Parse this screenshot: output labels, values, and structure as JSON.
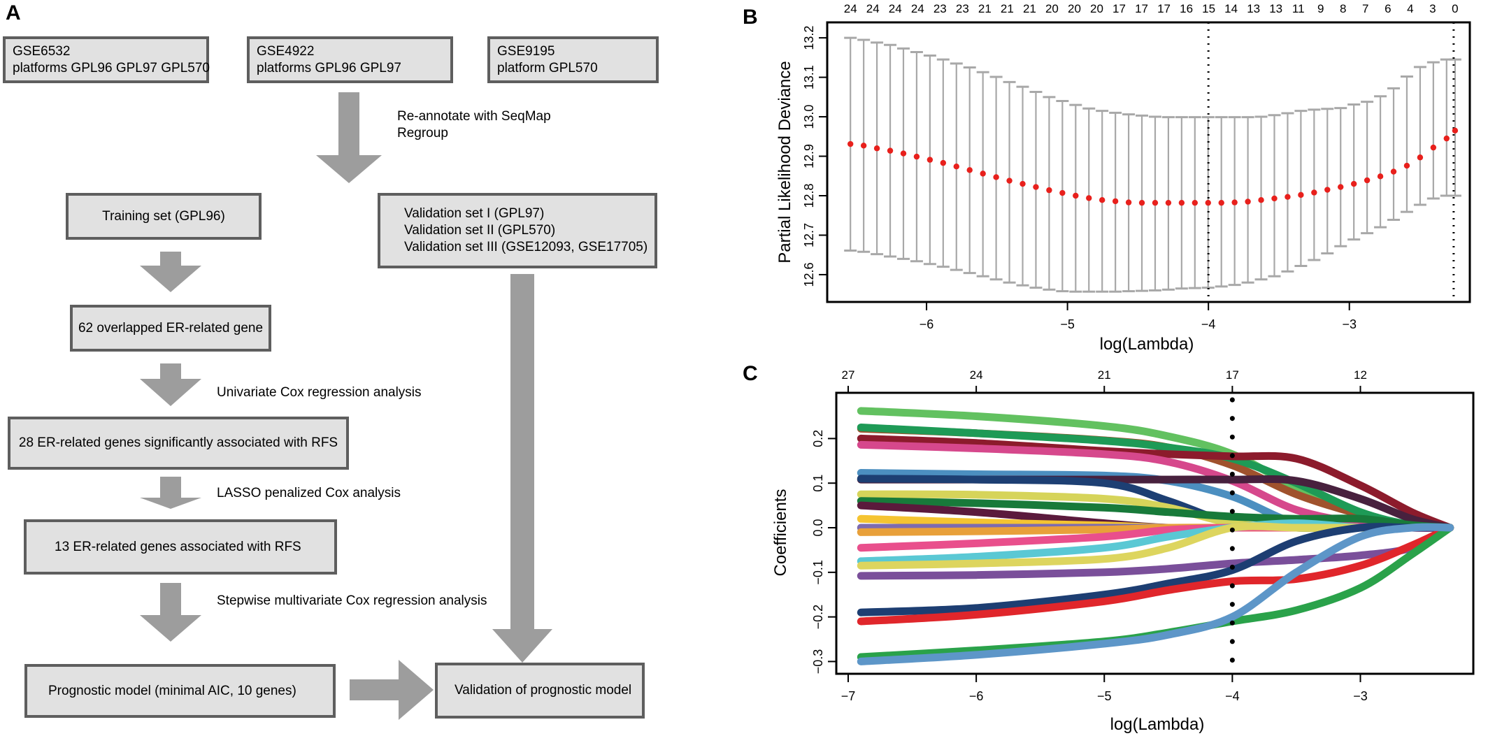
{
  "panels": {
    "a": "A",
    "b": "B",
    "c": "C"
  },
  "flowchart": {
    "boxes": [
      {
        "id": "gse6532",
        "lines": [
          "GSE6532",
          "platforms GPL96 GPL97 GPL570"
        ]
      },
      {
        "id": "gse4922",
        "lines": [
          "GSE4922",
          "platforms GPL96 GPL97"
        ]
      },
      {
        "id": "gse9195",
        "lines": [
          "GSE9195",
          "platform GPL570"
        ]
      },
      {
        "id": "training",
        "lines": [
          "Training set (GPL96)"
        ]
      },
      {
        "id": "validation-sets",
        "lines": [
          "Validation set I (GPL97)",
          "Validation set II (GPL570)",
          "Validation set III (GSE12093, GSE17705)"
        ]
      },
      {
        "id": "overlap",
        "lines": [
          "62 overlapped ER-related gene"
        ]
      },
      {
        "id": "sig28",
        "lines": [
          "28 ER-related genes significantly associated with RFS"
        ]
      },
      {
        "id": "sig13",
        "lines": [
          "13 ER-related genes associated with RFS"
        ]
      },
      {
        "id": "model",
        "lines": [
          "Prognostic model (minimal AIC, 10 genes)"
        ]
      },
      {
        "id": "validation",
        "lines": [
          "Validation of prognostic model"
        ]
      }
    ],
    "labels": [
      {
        "id": "reannotate",
        "lines": [
          "Re-annotate with SeqMap",
          "Regroup"
        ]
      },
      {
        "id": "univariate",
        "lines": [
          "Univariate Cox regression analysis"
        ]
      },
      {
        "id": "lasso",
        "lines": [
          "LASSO penalized Cox analysis"
        ]
      },
      {
        "id": "stepwise",
        "lines": [
          "Stepwise multivariate Cox regression analysis"
        ]
      }
    ],
    "colors": {
      "box_fill": "#e1e1e1",
      "box_border": "#5e5e5e",
      "arrow": "#9d9d9d"
    }
  },
  "chart_data": [
    {
      "type": "scatter",
      "id": "cv-deviance",
      "xlabel": "log(Lambda)",
      "ylabel": "Partial Likelihood Deviance",
      "xlim": [
        -6.67,
        -2.18
      ],
      "ylim": [
        12.545,
        13.225
      ],
      "xticks": [
        -6,
        -5,
        -4,
        -3
      ],
      "yticks": [
        12.6,
        12.7,
        12.8,
        12.9,
        13.0,
        13.1,
        13.2
      ],
      "top_ticks": [
        "24",
        "24",
        "24",
        "24",
        "23",
        "23",
        "21",
        "21",
        "21",
        "20",
        "20",
        "20",
        "17",
        "17",
        "17",
        "16",
        "15",
        "14",
        "13",
        "13",
        "11",
        "9",
        "8",
        "7",
        "6",
        "4",
        "3",
        "0"
      ],
      "vlines": [
        -4.0,
        -2.26
      ],
      "x": [
        -6.54,
        -6.446,
        -6.352,
        -6.258,
        -6.164,
        -6.07,
        -5.976,
        -5.882,
        -5.788,
        -5.694,
        -5.6,
        -5.506,
        -5.412,
        -5.318,
        -5.224,
        -5.13,
        -5.036,
        -4.942,
        -4.848,
        -4.754,
        -4.66,
        -4.566,
        -4.472,
        -4.378,
        -4.284,
        -4.19,
        -4.096,
        -4.002,
        -3.908,
        -3.814,
        -3.72,
        -3.626,
        -3.532,
        -3.438,
        -3.344,
        -3.25,
        -3.156,
        -3.062,
        -2.968,
        -2.874,
        -2.78,
        -2.686,
        -2.592,
        -2.498,
        -2.404,
        -2.31,
        -2.25
      ],
      "y": [
        12.931,
        12.927,
        12.92,
        12.914,
        12.907,
        12.899,
        12.891,
        12.883,
        12.874,
        12.865,
        12.856,
        12.847,
        12.838,
        12.83,
        12.822,
        12.814,
        12.807,
        12.8,
        12.794,
        12.789,
        12.786,
        12.783,
        12.782,
        12.782,
        12.782,
        12.782,
        12.782,
        12.782,
        12.782,
        12.783,
        12.785,
        12.789,
        12.793,
        12.797,
        12.802,
        12.808,
        12.815,
        12.822,
        12.83,
        12.839,
        12.849,
        12.861,
        12.876,
        12.897,
        12.922,
        12.945,
        12.965
      ],
      "upper": [
        13.2,
        13.195,
        13.188,
        13.182,
        13.173,
        13.164,
        13.155,
        13.145,
        13.135,
        13.125,
        13.113,
        13.101,
        13.088,
        13.076,
        13.063,
        13.05,
        13.04,
        13.03,
        13.021,
        13.015,
        13.01,
        13.006,
        13.003,
        13.0,
        12.999,
        12.999,
        12.999,
        12.999,
        12.999,
        12.999,
        12.999,
        13.0,
        13.004,
        13.009,
        13.015,
        13.018,
        13.02,
        13.022,
        13.031,
        13.038,
        13.052,
        13.072,
        13.102,
        13.126,
        13.138,
        13.145,
        13.145
      ],
      "lower": [
        12.661,
        12.658,
        12.652,
        12.646,
        12.64,
        12.634,
        12.627,
        12.62,
        12.612,
        12.604,
        12.596,
        12.588,
        12.58,
        12.573,
        12.567,
        12.562,
        12.558,
        12.557,
        12.557,
        12.557,
        12.557,
        12.558,
        12.559,
        12.56,
        12.562,
        12.565,
        12.566,
        12.567,
        12.57,
        12.574,
        12.58,
        12.588,
        12.596,
        12.608,
        12.622,
        12.637,
        12.654,
        12.672,
        12.689,
        12.705,
        12.72,
        12.739,
        12.759,
        12.777,
        12.793,
        12.8,
        12.8
      ],
      "colors": {
        "points": "#e8201c",
        "bars": "#a8a8a8",
        "vline": "#000000"
      }
    },
    {
      "type": "line",
      "id": "coefficient-paths",
      "xlabel": "log(Lambda)",
      "ylabel": "Coefficients",
      "xlim": [
        -7.0,
        -2.2
      ],
      "ylim": [
        -0.315,
        0.29
      ],
      "xticks": [
        -7,
        -6,
        -5,
        -4,
        -3
      ],
      "yticks": [
        -0.3,
        -0.2,
        -0.1,
        0.0,
        0.1,
        0.2
      ],
      "top_ticks": [
        {
          "x": -7.0,
          "label": "27"
        },
        {
          "x": -6.0,
          "label": "24"
        },
        {
          "x": -5.0,
          "label": "21"
        },
        {
          "x": -4.0,
          "label": "17"
        },
        {
          "x": -3.0,
          "label": "12"
        }
      ],
      "vlines": [
        -4.0
      ],
      "x": [
        -6.9,
        -6.0,
        -5.0,
        -4.5,
        -4.0,
        -3.5,
        -3.0,
        -2.6,
        -2.3
      ],
      "series": [
        {
          "color": "#62c160",
          "values": [
            0.262,
            0.25,
            0.228,
            0.205,
            0.165,
            0.09,
            0.03,
            0.006,
            0.0
          ]
        },
        {
          "color": "#a0522d",
          "values": [
            0.222,
            0.212,
            0.196,
            0.18,
            0.14,
            0.075,
            0.03,
            0.006,
            0.0
          ]
        },
        {
          "color": "#1e9a56",
          "values": [
            0.225,
            0.212,
            0.195,
            0.18,
            0.155,
            0.1,
            0.035,
            0.006,
            0.0
          ]
        },
        {
          "color": "#8c1b2c",
          "values": [
            0.2,
            0.19,
            0.172,
            0.165,
            0.16,
            0.155,
            0.095,
            0.035,
            0.0
          ]
        },
        {
          "color": "#d6488c",
          "values": [
            0.186,
            0.178,
            0.165,
            0.148,
            0.105,
            0.04,
            0.01,
            0.0,
            0.0
          ]
        },
        {
          "color": "#4c8fc0",
          "values": [
            0.123,
            0.12,
            0.117,
            0.105,
            0.07,
            0.01,
            0.0,
            0.0,
            0.0
          ]
        },
        {
          "color": "#48213e",
          "values": [
            0.108,
            0.108,
            0.108,
            0.108,
            0.108,
            0.105,
            0.065,
            0.02,
            0.0
          ]
        },
        {
          "color": "#1d3f73",
          "values": [
            0.11,
            0.108,
            0.1,
            0.06,
            0.01,
            0.0,
            0.0,
            0.0,
            0.0
          ]
        },
        {
          "color": "#d6d45a",
          "values": [
            0.075,
            0.074,
            0.065,
            0.045,
            0.01,
            0.0,
            0.0,
            0.0,
            0.0
          ]
        },
        {
          "color": "#187a3a",
          "values": [
            0.06,
            0.055,
            0.045,
            0.035,
            0.025,
            0.02,
            0.02,
            0.006,
            0.0
          ]
        },
        {
          "color": "#5b1a3c",
          "values": [
            0.05,
            0.035,
            0.01,
            0.0,
            0.0,
            0.0,
            0.0,
            0.0,
            0.0
          ]
        },
        {
          "color": "#f5c431",
          "values": [
            0.02,
            0.012,
            0.005,
            0.0,
            0.0,
            0.0,
            0.0,
            0.0,
            0.0
          ]
        },
        {
          "color": "#7d6bb0",
          "values": [
            0.0,
            0.0,
            0.0,
            0.0,
            0.0,
            0.0,
            0.0,
            0.0,
            0.0
          ]
        },
        {
          "color": "#e8a03a",
          "values": [
            -0.01,
            -0.008,
            -0.004,
            0.0,
            0.0,
            0.0,
            0.0,
            0.0,
            0.0
          ]
        },
        {
          "color": "#e94f8c",
          "values": [
            -0.045,
            -0.035,
            -0.02,
            -0.005,
            0.0,
            0.0,
            0.0,
            0.0,
            0.0
          ]
        },
        {
          "color": "#5ac8d4",
          "values": [
            -0.075,
            -0.065,
            -0.045,
            -0.02,
            0.0,
            0.01,
            0.0,
            0.0,
            0.0
          ]
        },
        {
          "color": "#ddd55e",
          "values": [
            -0.085,
            -0.08,
            -0.07,
            -0.045,
            0.0,
            0.0,
            0.0,
            0.0,
            0.0
          ]
        },
        {
          "color": "#7a4f9a",
          "values": [
            -0.108,
            -0.106,
            -0.1,
            -0.092,
            -0.08,
            -0.072,
            -0.062,
            -0.045,
            0.0
          ]
        },
        {
          "color": "#1d3e72",
          "values": [
            -0.19,
            -0.18,
            -0.15,
            -0.125,
            -0.095,
            -0.03,
            0.0,
            0.0,
            0.0
          ]
        },
        {
          "color": "#e0262b",
          "values": [
            -0.21,
            -0.195,
            -0.165,
            -0.14,
            -0.12,
            -0.115,
            -0.085,
            -0.04,
            0.0
          ]
        },
        {
          "color": "#2aa24a",
          "values": [
            -0.29,
            -0.275,
            -0.255,
            -0.235,
            -0.21,
            -0.185,
            -0.135,
            -0.06,
            0.0
          ]
        },
        {
          "color": "#5d96c8",
          "values": [
            -0.3,
            -0.285,
            -0.26,
            -0.24,
            -0.2,
            -0.1,
            -0.02,
            0.0,
            0.0
          ]
        }
      ],
      "colors": {
        "vline": "#000000"
      }
    }
  ]
}
